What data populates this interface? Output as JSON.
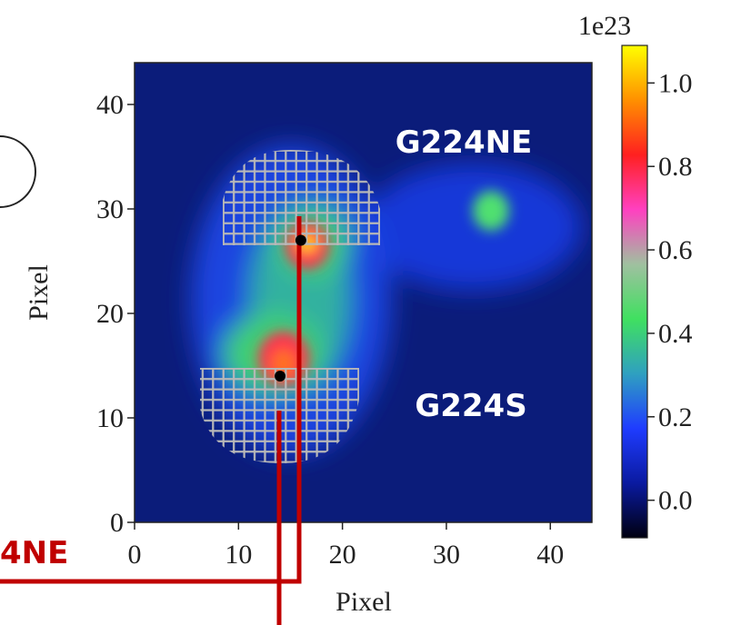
{
  "chart_data": {
    "type": "image",
    "xlabel": "Pixel",
    "ylabel": "Pixel",
    "xlim": [
      0,
      44
    ],
    "ylim": [
      0,
      44
    ],
    "xticks": [
      0,
      10,
      20,
      30,
      40
    ],
    "yticks": [
      0,
      10,
      20,
      30,
      40
    ],
    "points": {
      "x": [
        16,
        14
      ],
      "y": [
        27,
        14
      ],
      "color": "#000000"
    },
    "annotations": [
      "G224NE",
      "G224S"
    ],
    "overlay_label": "4NE",
    "colorbar": {
      "multiplier": "1e23",
      "lim": [
        -0.09,
        1.09
      ],
      "ticks": [
        {
          "value": 0,
          "label": "0.0"
        },
        0.2,
        0.4,
        0.6,
        0.8,
        {
          "value": 1,
          "label": "1.0"
        }
      ],
      "colors": [
        "#000010",
        "#0a1aa0",
        "#1f3cff",
        "#2fa0c0",
        "#40e060",
        "#a0c0a0",
        "#ff40c0",
        "#ff2020",
        "#ff9000",
        "#ffff00"
      ]
    }
  }
}
